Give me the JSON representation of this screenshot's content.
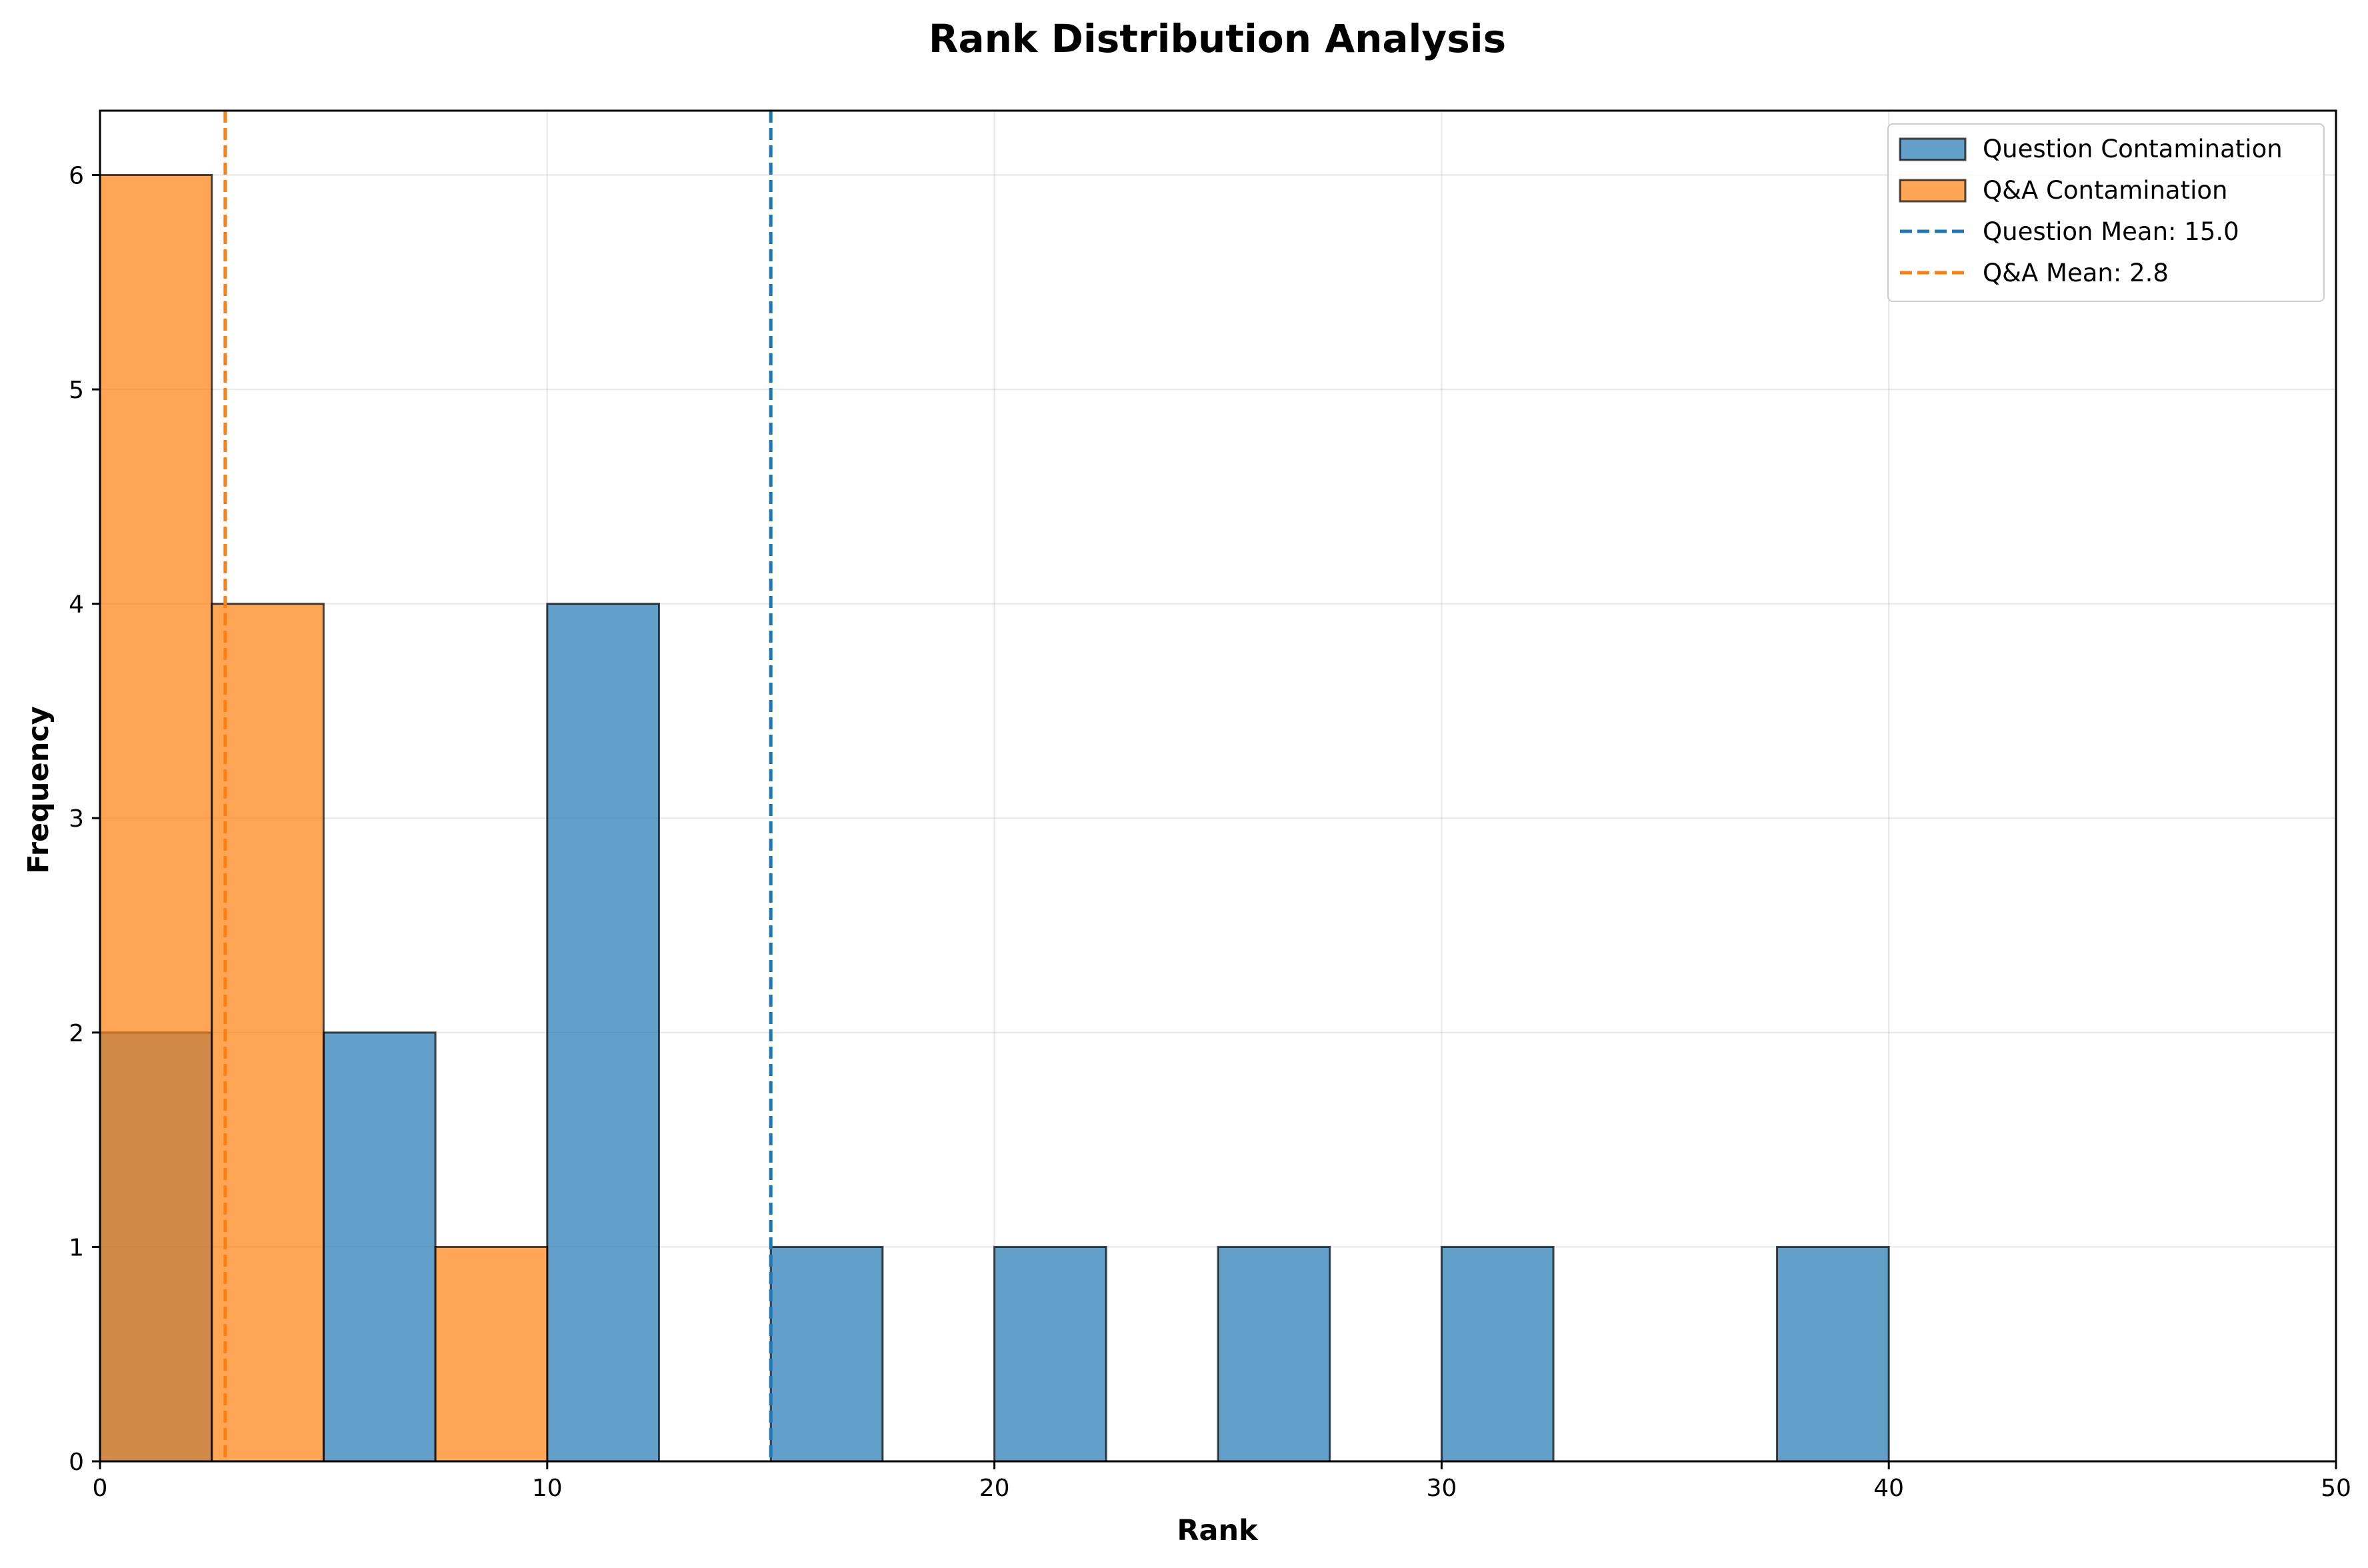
{
  "chart_data": {
    "type": "bar",
    "title": "Rank Distribution Analysis",
    "xlabel": "Rank",
    "ylabel": "Frequency",
    "xlim": [
      0,
      50
    ],
    "ylim": [
      0,
      6.3
    ],
    "xticks": [
      0,
      10,
      20,
      30,
      40,
      50
    ],
    "yticks": [
      0,
      1,
      2,
      3,
      4,
      5,
      6
    ],
    "grid": true,
    "legend_position": "top-right",
    "bin_width": 2.5,
    "series": [
      {
        "name": "Question Contamination",
        "color": "#1f77b4",
        "bins": [
          {
            "start": 0,
            "end": 2.5,
            "count": 2
          },
          {
            "start": 5,
            "end": 7.5,
            "count": 2
          },
          {
            "start": 10,
            "end": 12.5,
            "count": 4
          },
          {
            "start": 15,
            "end": 17.5,
            "count": 1
          },
          {
            "start": 20,
            "end": 22.5,
            "count": 1
          },
          {
            "start": 25,
            "end": 27.5,
            "count": 1
          },
          {
            "start": 30,
            "end": 32.5,
            "count": 1
          },
          {
            "start": 37.5,
            "end": 40,
            "count": 1
          }
        ]
      },
      {
        "name": "Q&A Contamination",
        "color": "#ff7f0e",
        "bins": [
          {
            "start": 0,
            "end": 2.5,
            "count": 6
          },
          {
            "start": 2.5,
            "end": 5,
            "count": 4
          },
          {
            "start": 7.5,
            "end": 10,
            "count": 1
          }
        ]
      }
    ],
    "mean_lines": [
      {
        "name": "Question Mean: 15.0",
        "value": 15.0,
        "color": "#1f77b4"
      },
      {
        "name": "Q&A Mean: 2.8",
        "value": 2.8,
        "color": "#ff7f0e"
      }
    ]
  }
}
